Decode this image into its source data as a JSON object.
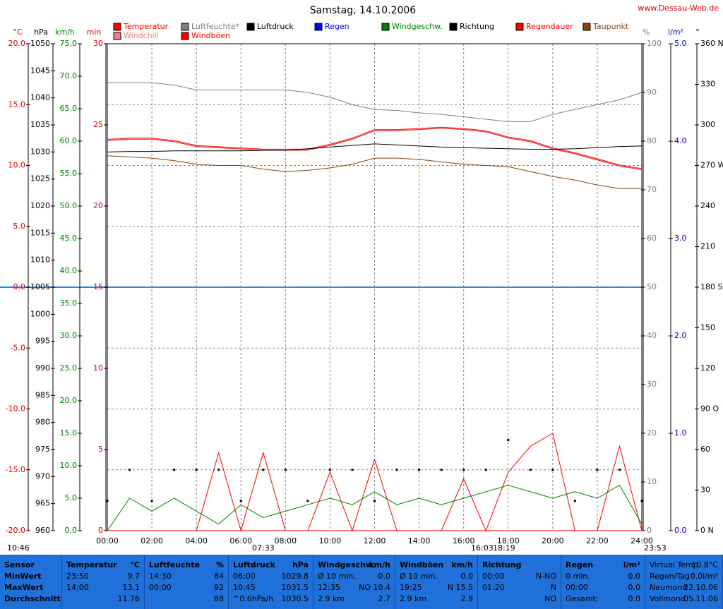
{
  "chart_data": {
    "type": "line",
    "title": "Samstag, 14.10.2006",
    "source": "www.Dessau-Web.de",
    "grid": true,
    "x": [
      0,
      1,
      2,
      3,
      4,
      5,
      6,
      7,
      8,
      9,
      10,
      11,
      12,
      13,
      14,
      15,
      16,
      17,
      18,
      19,
      20,
      21,
      22,
      23,
      24
    ],
    "xlim": [
      0,
      24
    ],
    "xticks": [
      {
        "value": 0,
        "label": "00:00"
      },
      {
        "value": 2,
        "label": "02:00"
      },
      {
        "value": 4,
        "label": "04:00"
      },
      {
        "value": 6,
        "label": "06:00"
      },
      {
        "value": 8,
        "label": "08:00"
      },
      {
        "value": 10,
        "label": "10:00"
      },
      {
        "value": 12,
        "label": "12:00"
      },
      {
        "value": 14,
        "label": "14:00"
      },
      {
        "value": 16,
        "label": "16:00"
      },
      {
        "value": 18,
        "label": "18:00"
      },
      {
        "value": 20,
        "label": "20:00"
      },
      {
        "value": 22,
        "label": "22:00"
      },
      {
        "value": 24,
        "label": "24:00"
      }
    ],
    "axes": [
      {
        "unit": "°C",
        "color": "#e00000",
        "lim": [
          -20,
          20
        ],
        "ticks": [
          {
            "value": -20,
            "label": "-20.0"
          },
          {
            "value": -15,
            "label": "-15.0"
          },
          {
            "value": -10,
            "label": "-10.0"
          },
          {
            "value": -5,
            "label": "-5.0"
          },
          {
            "value": 0,
            "label": "0.0"
          },
          {
            "value": 5,
            "label": "5.0"
          },
          {
            "value": 10,
            "label": "10.0"
          },
          {
            "value": 15,
            "label": "15.0"
          },
          {
            "value": 20,
            "label": "20.0"
          }
        ]
      },
      {
        "unit": "hPa",
        "color": "#000000",
        "lim": [
          960,
          1050
        ],
        "ticks": [
          960,
          965,
          970,
          975,
          980,
          985,
          990,
          995,
          1000,
          1005,
          1010,
          1015,
          1020,
          1025,
          1030,
          1035,
          1040,
          1045,
          1050
        ]
      },
      {
        "unit": "km/h",
        "color": "#008000",
        "lim": [
          0,
          75
        ],
        "ticks": [
          {
            "value": 0,
            "label": "0.0"
          },
          {
            "value": 5,
            "label": "5.0"
          },
          {
            "value": 10,
            "label": "10.0"
          },
          {
            "value": 15,
            "label": "15.0"
          },
          {
            "value": 20,
            "label": "20.0"
          },
          {
            "value": 25,
            "label": "25.0"
          },
          {
            "value": 30,
            "label": "30.0"
          },
          {
            "value": 35,
            "label": "35.0"
          },
          {
            "value": 40,
            "label": "40.0"
          },
          {
            "value": 45,
            "label": "45.0"
          },
          {
            "value": 50,
            "label": "50.0"
          },
          {
            "value": 55,
            "label": "55.0"
          },
          {
            "value": 60,
            "label": "60.0"
          },
          {
            "value": 65,
            "label": "65.0"
          },
          {
            "value": 70,
            "label": "70.0"
          },
          {
            "value": 75,
            "label": "75.0"
          }
        ]
      },
      {
        "unit": "min",
        "color": "#e00000",
        "lim": [
          0,
          30
        ],
        "ticks": [
          0,
          5,
          10,
          15,
          20,
          25,
          30
        ]
      },
      {
        "unit": "%",
        "color": "#808080",
        "lim": [
          0,
          100
        ],
        "ticks": [
          0,
          10,
          20,
          30,
          40,
          50,
          60,
          70,
          80,
          90,
          100
        ]
      },
      {
        "unit": "l/m²",
        "color": "#0000c0",
        "lim": [
          0,
          5
        ],
        "ticks": [
          {
            "value": 0,
            "label": "0.0"
          },
          {
            "value": 1,
            "label": "1.0"
          },
          {
            "value": 2,
            "label": "2.0"
          },
          {
            "value": 3,
            "label": "3.0"
          },
          {
            "value": 4,
            "label": "4.0"
          },
          {
            "value": 5,
            "label": "5.0"
          }
        ]
      },
      {
        "unit": "°",
        "color": "#000000",
        "lim": [
          0,
          360
        ],
        "ticks": [
          {
            "value": 0,
            "label": "0 N"
          },
          30,
          60,
          {
            "value": 90,
            "label": "90 O"
          },
          120,
          150,
          {
            "value": 180,
            "label": "180 S"
          },
          210,
          240,
          {
            "value": 270,
            "label": "270 W"
          },
          300,
          330,
          {
            "value": 360,
            "label": "360 N"
          }
        ]
      }
    ],
    "series": [
      {
        "name": "Temperatur",
        "color": "#ff0000",
        "axis": 0,
        "values": [
          12.1,
          12.2,
          12.2,
          12.0,
          11.6,
          11.5,
          11.4,
          11.3,
          11.3,
          11.3,
          11.7,
          12.2,
          12.9,
          12.9,
          13.0,
          13.1,
          13.0,
          12.8,
          12.3,
          12.0,
          11.4,
          11.0,
          10.5,
          10.0,
          9.7
        ]
      },
      {
        "name": "Windchill",
        "color": "#f08080",
        "axis": 0,
        "values": [
          12.1,
          12.2,
          12.2,
          12.0,
          11.6,
          11.5,
          11.4,
          11.3,
          11.3,
          11.3,
          11.7,
          12.2,
          12.9,
          12.9,
          13.0,
          13.1,
          13.0,
          12.8,
          12.3,
          12.0,
          11.4,
          11.0,
          10.5,
          10.0,
          9.7
        ]
      },
      {
        "name": "Luftfeuchte*",
        "color": "#808080",
        "axis": 4,
        "values": [
          92,
          92,
          92,
          91.5,
          90.5,
          90.5,
          90.5,
          90.5,
          90.5,
          90,
          89,
          87.5,
          86.5,
          86.3,
          85.8,
          85.5,
          85,
          84.5,
          84,
          84,
          85.5,
          86.5,
          87.5,
          88.5,
          90
        ]
      },
      {
        "name": "Windböen",
        "color": "#ff0000",
        "axis": 2,
        "values": [
          0,
          0,
          0,
          0,
          0,
          12,
          0,
          12,
          0,
          0,
          9,
          0,
          11,
          0,
          0,
          0,
          8,
          0,
          9,
          13,
          15,
          0,
          0,
          13,
          0
        ]
      },
      {
        "name": "Luftdruck",
        "color": "#000000",
        "axis": 1,
        "values": [
          1030.0,
          1030.1,
          1030.1,
          1030.2,
          1030.2,
          1030.2,
          1030.2,
          1030.3,
          1030.3,
          1030.6,
          1030.9,
          1031.2,
          1031.5,
          1031.3,
          1031.1,
          1030.9,
          1030.8,
          1030.7,
          1030.6,
          1030.5,
          1030.5,
          1030.6,
          1030.8,
          1031.0,
          1031.1
        ]
      },
      {
        "name": "Regen",
        "color": "#0000ff",
        "axis": 5,
        "values": [
          0,
          0,
          0,
          0,
          0,
          0,
          0,
          0,
          0,
          0,
          0,
          0,
          0,
          0,
          0,
          0,
          0,
          0,
          0,
          0,
          0,
          0,
          0,
          0,
          0
        ]
      },
      {
        "name": "Windgeschw.",
        "color": "#008000",
        "axis": 2,
        "values": [
          0,
          5,
          3,
          5,
          3,
          1,
          4,
          2,
          3,
          4,
          5,
          4,
          6,
          4,
          5,
          4,
          5,
          6,
          7,
          6,
          5,
          6,
          5,
          7,
          1
        ]
      },
      {
        "name": "Richtung",
        "color": "#000000",
        "axis": 6,
        "mark": "dots",
        "values": [
          22,
          45,
          22,
          45,
          45,
          45,
          22,
          45,
          45,
          22,
          45,
          45,
          22,
          45,
          45,
          45,
          45,
          45,
          67,
          45,
          45,
          22,
          45,
          45,
          22
        ]
      },
      {
        "name": "Regendauer",
        "color": "#ff0000",
        "axis": 3,
        "values": [
          0,
          0,
          0,
          0,
          0,
          0,
          0,
          0,
          0,
          0,
          0,
          0,
          0,
          0,
          0,
          0,
          0,
          0,
          0,
          0,
          0,
          0,
          0,
          0,
          0
        ]
      },
      {
        "name": "Taupunkt",
        "color": "#8b4513",
        "axis": 0,
        "values": [
          10.8,
          10.7,
          10.6,
          10.4,
          10.1,
          10.0,
          10.0,
          9.7,
          9.5,
          9.6,
          9.8,
          10.1,
          10.6,
          10.6,
          10.5,
          10.3,
          10.1,
          10.0,
          9.9,
          9.5,
          9.1,
          8.8,
          8.4,
          8.1,
          8.1
        ]
      }
    ],
    "time_markers": [
      "10:46",
      "07:33",
      "16:03",
      "18:19",
      "23:53"
    ]
  },
  "table": {
    "panels": [
      {
        "title": "Sensor",
        "rows": [
          {
            "left": "MinWert"
          },
          {
            "left": "MaxWert"
          },
          {
            "left": "Durchschnitt"
          }
        ]
      },
      {
        "title": "Temperatur",
        "unit": "°C",
        "rows": [
          {
            "left": "23:50",
            "right": "9.7"
          },
          {
            "left": "14:00",
            "right": "13.1"
          },
          {
            "right": "11.76"
          }
        ]
      },
      {
        "title": "Luftfeuchte",
        "unit": "%",
        "rows": [
          {
            "left": "14:30",
            "right": "84"
          },
          {
            "left": "00:00",
            "right": "92"
          },
          {
            "right": "88"
          }
        ]
      },
      {
        "title": "Luftdruck",
        "unit": "hPa",
        "rows": [
          {
            "left": "06:00",
            "right": "1029.8"
          },
          {
            "left": "10:45",
            "right": "1031.5"
          },
          {
            "left": "^0.6hPa/h",
            "right": "1030.5"
          }
        ]
      },
      {
        "title": "Windgeschw.",
        "unit": "km/h",
        "rows": [
          {
            "left": "Ø 10 min.",
            "right": "0.0"
          },
          {
            "left": "12:35",
            "right": "NO 10.4"
          },
          {
            "left": "2.9 km",
            "right": "2.7"
          }
        ]
      },
      {
        "title": "Windböen",
        "unit": "km/h",
        "rows": [
          {
            "left": "Ø 10 min.",
            "right": "0.0"
          },
          {
            "left": "19:25",
            "right": "N 15.5"
          },
          {
            "left": "2.9 km",
            "right": "2.9"
          }
        ]
      },
      {
        "title": "Richtung",
        "rows": [
          {
            "left": "00:00",
            "right": "N-NO"
          },
          {
            "left": "01:20",
            "right": "N"
          },
          {
            "right": "NO"
          }
        ]
      },
      {
        "title": "Regen",
        "unit": "l/m²",
        "rows": [
          {
            "left": "0 min.",
            "right": "0.0"
          },
          {
            "left": "00:00",
            "right": "0.0"
          },
          {
            "left": "Gesamt:",
            "right": "0.0"
          }
        ]
      },
      {
        "rows": [
          {
            "left": "Virtual Temp",
            "right": "10.8°C"
          },
          {
            "left": "Regen/Tag",
            "right": "0.0l/m²"
          },
          {
            "left": "Neumond",
            "right": "22.10.06"
          },
          {
            "left": "Vollmond",
            "right": "05.11.06"
          }
        ]
      }
    ]
  }
}
